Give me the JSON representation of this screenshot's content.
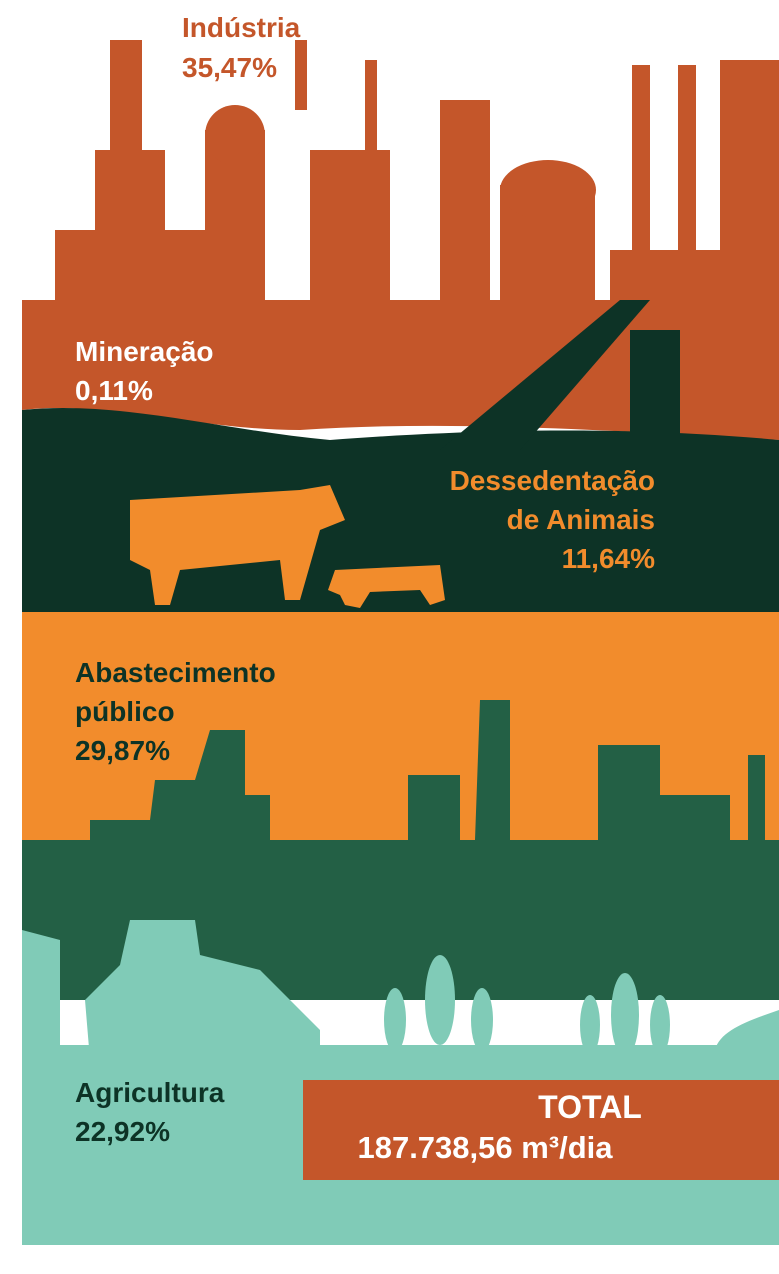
{
  "sectors": [
    {
      "name": [
        "Indústria"
      ],
      "share": "35,47%"
    },
    {
      "name": [
        "Mineração"
      ],
      "share": "0,11%"
    },
    {
      "name": [
        "Dessedentação",
        "de Animais"
      ],
      "share": "11,64%"
    },
    {
      "name": [
        "Abastecimento",
        "público"
      ],
      "share": "29,87%"
    },
    {
      "name": [
        "Agricultura"
      ],
      "share": "22,92%"
    }
  ],
  "total": {
    "label": "TOTAL",
    "value": "187.738,56 m³/dia"
  }
}
